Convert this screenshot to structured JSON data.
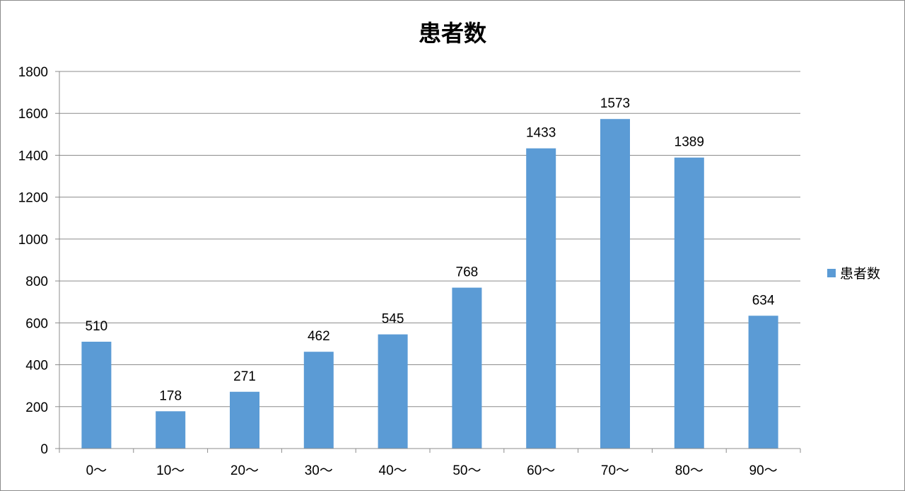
{
  "chart_data": {
    "type": "bar",
    "title": "患者数",
    "categories": [
      "0～",
      "10～",
      "20～",
      "30～",
      "40～",
      "50～",
      "60～",
      "70～",
      "80～",
      "90～"
    ],
    "series": [
      {
        "name": "患者数",
        "values": [
          510,
          178,
          271,
          462,
          545,
          768,
          1433,
          1573,
          1389,
          634
        ],
        "color": "#5b9bd5"
      }
    ],
    "ylim": [
      0,
      1800
    ],
    "yticks": [
      0,
      200,
      400,
      600,
      800,
      1000,
      1200,
      1400,
      1600,
      1800
    ],
    "grid": true,
    "legend": "right",
    "data_labels": true
  }
}
